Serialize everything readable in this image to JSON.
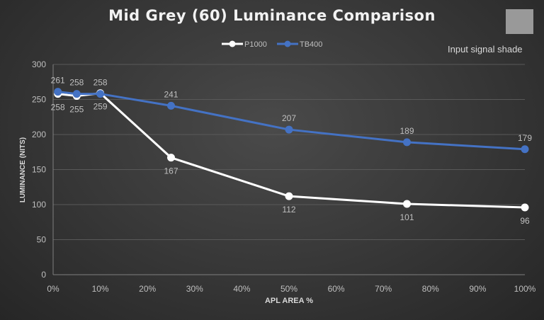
{
  "chart_data": {
    "type": "line",
    "title": "Mid Grey (60) Luminance Comparison",
    "xlabel": "APL AREA %",
    "ylabel": "LUMINANCE (NITS)",
    "x": [
      1,
      5,
      10,
      25,
      50,
      75,
      100
    ],
    "xlim": [
      0,
      100
    ],
    "ylim": [
      0,
      300
    ],
    "xticks": [
      "0%",
      "10%",
      "20%",
      "30%",
      "40%",
      "50%",
      "60%",
      "70%",
      "80%",
      "90%",
      "100%"
    ],
    "yticks": [
      "0",
      "50",
      "100",
      "150",
      "200",
      "250",
      "300"
    ],
    "grid": true,
    "legend": "top-center",
    "series": [
      {
        "name": "P1000",
        "color": "#ffffff",
        "values": [
          258,
          255,
          259,
          167,
          112,
          101,
          96
        ]
      },
      {
        "name": "TB400",
        "color": "#4472c4",
        "values": [
          261,
          258,
          258,
          241,
          207,
          189,
          179
        ]
      }
    ]
  },
  "annotation": {
    "label": "Input signal shade",
    "swatch_color": "#999999"
  }
}
